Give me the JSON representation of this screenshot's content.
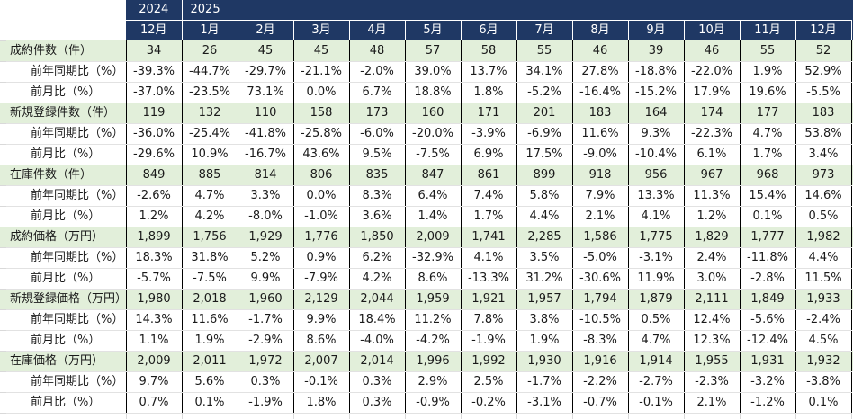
{
  "colors": {
    "header_bg": "#1F3864",
    "header_text": "#ffffff",
    "band_bg": "#E2EFDA",
    "grid_black": "#000000",
    "gridline_gray": "#d9d9d9"
  },
  "table": {
    "year_row": [
      {
        "label": "2024",
        "span": 1
      },
      {
        "label": "2025",
        "span": 12
      }
    ],
    "months": [
      "12月",
      "1月",
      "2月",
      "3月",
      "4月",
      "5月",
      "6月",
      "7月",
      "8月",
      "9月",
      "10月",
      "11月",
      "12月"
    ],
    "rows": [
      {
        "label": "成約件数（件）",
        "type": "category",
        "values": [
          "34",
          "26",
          "45",
          "45",
          "48",
          "57",
          "58",
          "55",
          "46",
          "39",
          "46",
          "55",
          "52"
        ]
      },
      {
        "label": "前年同期比（%）",
        "type": "sub",
        "values": [
          "-39.3%",
          "-44.7%",
          "-29.7%",
          "-21.1%",
          "-2.0%",
          "39.0%",
          "13.7%",
          "34.1%",
          "27.8%",
          "-18.8%",
          "-22.0%",
          "1.9%",
          "52.9%"
        ]
      },
      {
        "label": "前月比（%）",
        "type": "sub",
        "values": [
          "-37.0%",
          "-23.5%",
          "73.1%",
          "0.0%",
          "6.7%",
          "18.8%",
          "1.8%",
          "-5.2%",
          "-16.4%",
          "-15.2%",
          "17.9%",
          "19.6%",
          "-5.5%"
        ]
      },
      {
        "label": "新規登録件数（件）",
        "type": "category",
        "values": [
          "119",
          "132",
          "110",
          "158",
          "173",
          "160",
          "171",
          "201",
          "183",
          "164",
          "174",
          "177",
          "183"
        ]
      },
      {
        "label": "前年同期比（%）",
        "type": "sub",
        "values": [
          "-36.0%",
          "-25.4%",
          "-41.8%",
          "-25.8%",
          "-6.0%",
          "-20.0%",
          "-3.9%",
          "-6.9%",
          "11.6%",
          "9.3%",
          "-22.3%",
          "4.7%",
          "53.8%"
        ]
      },
      {
        "label": "前月比（%）",
        "type": "sub",
        "values": [
          "-29.6%",
          "10.9%",
          "-16.7%",
          "43.6%",
          "9.5%",
          "-7.5%",
          "6.9%",
          "17.5%",
          "-9.0%",
          "-10.4%",
          "6.1%",
          "1.7%",
          "3.4%"
        ]
      },
      {
        "label": "在庫件数（件）",
        "type": "category",
        "values": [
          "849",
          "885",
          "814",
          "806",
          "835",
          "847",
          "861",
          "899",
          "918",
          "956",
          "967",
          "968",
          "973"
        ]
      },
      {
        "label": "前年同期比（%）",
        "type": "sub",
        "values": [
          "-2.6%",
          "4.7%",
          "3.3%",
          "0.0%",
          "8.3%",
          "6.4%",
          "7.4%",
          "5.8%",
          "7.9%",
          "13.3%",
          "11.3%",
          "15.4%",
          "14.6%"
        ]
      },
      {
        "label": "前月比（%）",
        "type": "sub",
        "values": [
          "1.2%",
          "4.2%",
          "-8.0%",
          "-1.0%",
          "3.6%",
          "1.4%",
          "1.7%",
          "4.4%",
          "2.1%",
          "4.1%",
          "1.2%",
          "0.1%",
          "0.5%"
        ]
      },
      {
        "label": "成約価格（万円）",
        "type": "category",
        "values": [
          "1,899",
          "1,756",
          "1,929",
          "1,776",
          "1,850",
          "2,009",
          "1,741",
          "2,285",
          "1,586",
          "1,775",
          "1,829",
          "1,777",
          "1,982"
        ]
      },
      {
        "label": "前年同期比（%）",
        "type": "sub",
        "values": [
          "18.3%",
          "31.8%",
          "5.2%",
          "0.9%",
          "6.2%",
          "-32.9%",
          "4.1%",
          "3.5%",
          "-5.0%",
          "-3.1%",
          "2.4%",
          "-11.8%",
          "4.4%"
        ]
      },
      {
        "label": "前月比（%）",
        "type": "sub",
        "values": [
          "-5.7%",
          "-7.5%",
          "9.9%",
          "-7.9%",
          "4.2%",
          "8.6%",
          "-13.3%",
          "31.2%",
          "-30.6%",
          "11.9%",
          "3.0%",
          "-2.8%",
          "11.5%"
        ]
      },
      {
        "label": "新規登録価格（万円）",
        "type": "category",
        "values": [
          "1,980",
          "2,018",
          "1,960",
          "2,129",
          "2,044",
          "1,959",
          "1,921",
          "1,957",
          "1,794",
          "1,879",
          "2,111",
          "1,849",
          "1,933"
        ]
      },
      {
        "label": "前年同期比（%）",
        "type": "sub",
        "values": [
          "14.3%",
          "11.6%",
          "-1.7%",
          "9.9%",
          "18.4%",
          "11.2%",
          "7.8%",
          "3.8%",
          "-10.5%",
          "0.5%",
          "12.4%",
          "-5.6%",
          "-2.4%"
        ]
      },
      {
        "label": "前月比（%）",
        "type": "sub",
        "values": [
          "1.1%",
          "1.9%",
          "-2.9%",
          "8.6%",
          "-4.0%",
          "-4.2%",
          "-1.9%",
          "1.9%",
          "-8.3%",
          "4.7%",
          "12.3%",
          "-12.4%",
          "4.5%"
        ]
      },
      {
        "label": "在庫価格（万円）",
        "type": "category",
        "values": [
          "2,009",
          "2,011",
          "1,972",
          "2,007",
          "2,014",
          "1,996",
          "1,992",
          "1,930",
          "1,916",
          "1,914",
          "1,955",
          "1,931",
          "1,932"
        ]
      },
      {
        "label": "前年同期比（%）",
        "type": "sub",
        "values": [
          "9.7%",
          "5.6%",
          "0.3%",
          "-0.1%",
          "0.3%",
          "2.9%",
          "2.5%",
          "-1.7%",
          "-2.2%",
          "-2.7%",
          "-2.3%",
          "-3.2%",
          "-3.8%"
        ]
      },
      {
        "label": "前月比（%）",
        "type": "sub",
        "values": [
          "0.7%",
          "0.1%",
          "-1.9%",
          "1.8%",
          "0.3%",
          "-0.9%",
          "-0.2%",
          "-3.1%",
          "-0.7%",
          "-0.1%",
          "2.1%",
          "-1.2%",
          "0.1%"
        ]
      }
    ]
  }
}
